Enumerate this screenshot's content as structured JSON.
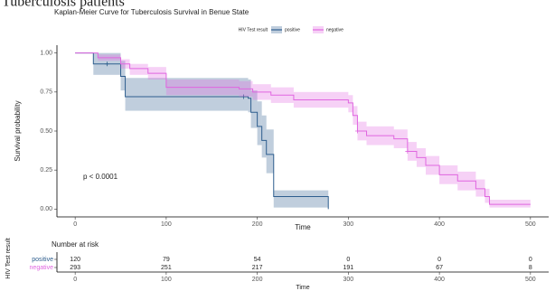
{
  "caption": "Tuberculosis patients",
  "chart_data": [
    {
      "type": "step",
      "title": "Kaplan-Meier Curve for Tuberculosis Survival in Benue State",
      "xlabel": "Time",
      "ylabel": "Survival probability",
      "legend_title": "HIV Test result",
      "annotation": "p < 0.0001",
      "xlim": [
        -20,
        520
      ],
      "xticks": [
        0,
        100,
        200,
        300,
        400,
        500
      ],
      "ylim": [
        -0.05,
        1.05
      ],
      "yticks": [
        {
          "value": 0,
          "label": "0.00"
        },
        0.25,
        {
          "value": 0.5,
          "label": "0.50"
        },
        0.75,
        {
          "value": 1,
          "label": "1.00"
        }
      ],
      "series": [
        {
          "name": "positive",
          "color": "#2e5e8e",
          "x": [
            0,
            20,
            50,
            55,
            190,
            193,
            200,
            205,
            210,
            218,
            278
          ],
          "values": [
            1.0,
            0.93,
            0.85,
            0.72,
            0.71,
            0.62,
            0.53,
            0.44,
            0.35,
            0.08,
            0.0
          ],
          "lower": [
            1.0,
            0.86,
            0.76,
            0.63,
            0.62,
            0.52,
            0.41,
            0.33,
            0.23,
            0.01,
            0.0
          ],
          "upper": [
            1.0,
            1.0,
            0.95,
            0.84,
            0.83,
            0.76,
            0.69,
            0.6,
            0.51,
            0.12,
            0.0
          ],
          "censored_x": [
            35,
            185
          ]
        },
        {
          "name": "negative",
          "color": "#e066e0",
          "x": [
            0,
            25,
            50,
            60,
            80,
            100,
            180,
            195,
            215,
            240,
            300,
            305,
            310,
            320,
            350,
            365,
            375,
            385,
            400,
            420,
            440,
            450,
            455,
            500
          ],
          "values": [
            1.0,
            0.97,
            0.93,
            0.9,
            0.87,
            0.78,
            0.77,
            0.75,
            0.73,
            0.7,
            0.68,
            0.6,
            0.5,
            0.47,
            0.45,
            0.37,
            0.33,
            0.28,
            0.22,
            0.18,
            0.13,
            0.08,
            0.03,
            0.03
          ],
          "lower": [
            1.0,
            0.95,
            0.9,
            0.86,
            0.83,
            0.73,
            0.72,
            0.7,
            0.68,
            0.65,
            0.62,
            0.54,
            0.44,
            0.41,
            0.39,
            0.31,
            0.27,
            0.22,
            0.16,
            0.12,
            0.08,
            0.04,
            0.01,
            0.01
          ],
          "upper": [
            1.0,
            0.99,
            0.96,
            0.93,
            0.91,
            0.83,
            0.82,
            0.8,
            0.78,
            0.75,
            0.73,
            0.66,
            0.56,
            0.53,
            0.51,
            0.43,
            0.39,
            0.34,
            0.28,
            0.24,
            0.19,
            0.13,
            0.06,
            0.06
          ],
          "censored_x": [
            310,
            365
          ]
        }
      ]
    },
    {
      "type": "risk-table",
      "title": "Number at risk",
      "xlabel": "Time",
      "ylabel": "HIV Test result",
      "xlim": [
        -20,
        520
      ],
      "xticks": [
        0,
        100,
        200,
        300,
        400,
        500
      ],
      "series": [
        {
          "name": "positive",
          "color": "#2e5e8e",
          "values": [
            120,
            79,
            54,
            0,
            0,
            0
          ]
        },
        {
          "name": "negative",
          "color": "#e066e0",
          "values": [
            293,
            251,
            217,
            191,
            67,
            8
          ]
        }
      ]
    }
  ]
}
